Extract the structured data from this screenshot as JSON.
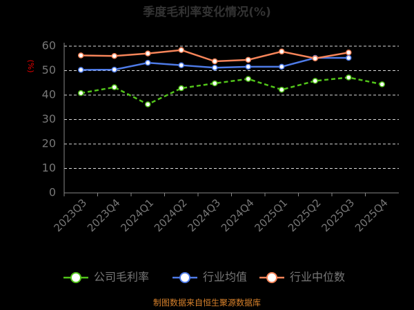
{
  "chart_data": {
    "type": "line",
    "title": "季度毛利率变化情况(%)",
    "y_label": "(%)",
    "categories": [
      "2023Q3",
      "2023Q4",
      "2024Q1",
      "2024Q2",
      "2024Q3",
      "2024Q4",
      "2025Q1",
      "2025Q2",
      "2025Q3",
      "2025Q4"
    ],
    "series": [
      {
        "name": "公司毛利率",
        "color": "#52c41a",
        "dashed": true,
        "values": [
          40.8,
          43.2,
          36.2,
          42.8,
          44.8,
          46.6,
          42.2,
          45.8,
          47.2,
          44.4
        ]
      },
      {
        "name": "行业均值",
        "color": "#4e7be8",
        "dashed": false,
        "values": [
          50.3,
          50.4,
          53.2,
          52.2,
          51.2,
          51.6,
          51.6,
          55.2,
          55.2,
          null
        ]
      },
      {
        "name": "行业中位数",
        "color": "#f7855a",
        "dashed": false,
        "values": [
          56.2,
          56.0,
          57.0,
          58.4,
          53.8,
          54.4,
          57.8,
          55.0,
          57.4,
          null
        ]
      }
    ],
    "ylim": [
      0,
      60
    ],
    "yticks": [
      0,
      10,
      20,
      30,
      40,
      50,
      60
    ],
    "grid": true,
    "source": "制图数据来自恒生聚源数据库"
  }
}
